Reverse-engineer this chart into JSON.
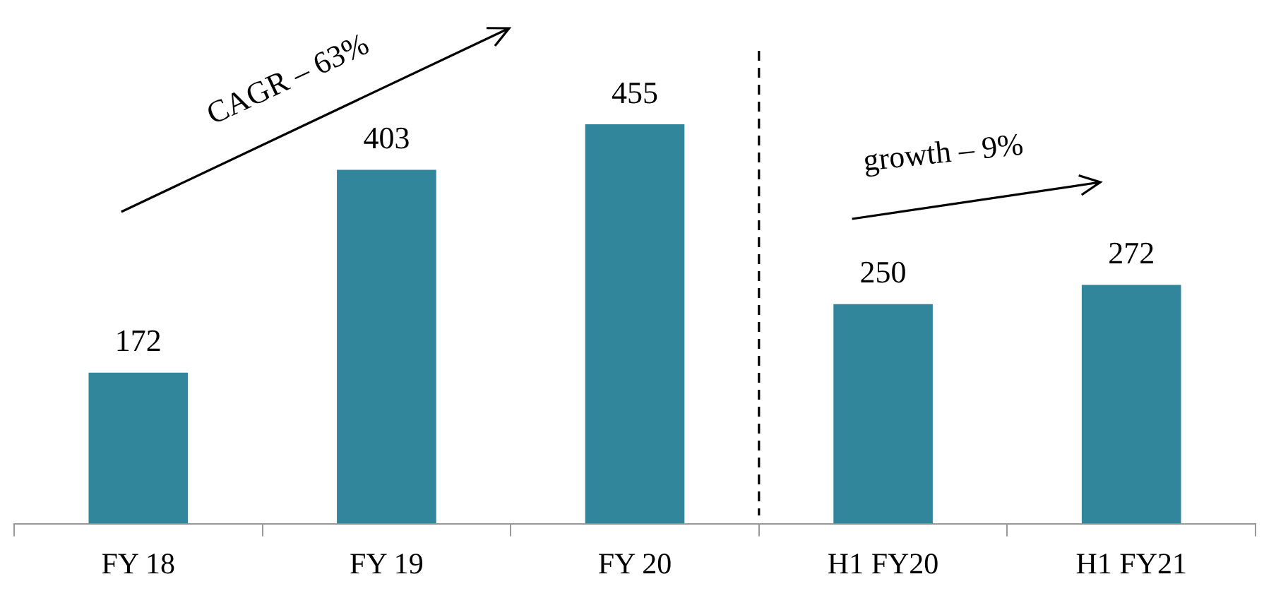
{
  "chart_data": {
    "type": "bar",
    "categories": [
      "FY 18",
      "FY 19",
      "FY 20",
      "H1 FY20",
      "H1 FY21"
    ],
    "values": [
      172,
      403,
      455,
      250,
      272
    ],
    "color": "#31869b",
    "data_labels": true,
    "grid": false,
    "legend": false,
    "tick_labels": "x",
    "annotations": [
      "CAGR – 63%",
      "growth – 9%"
    ]
  }
}
